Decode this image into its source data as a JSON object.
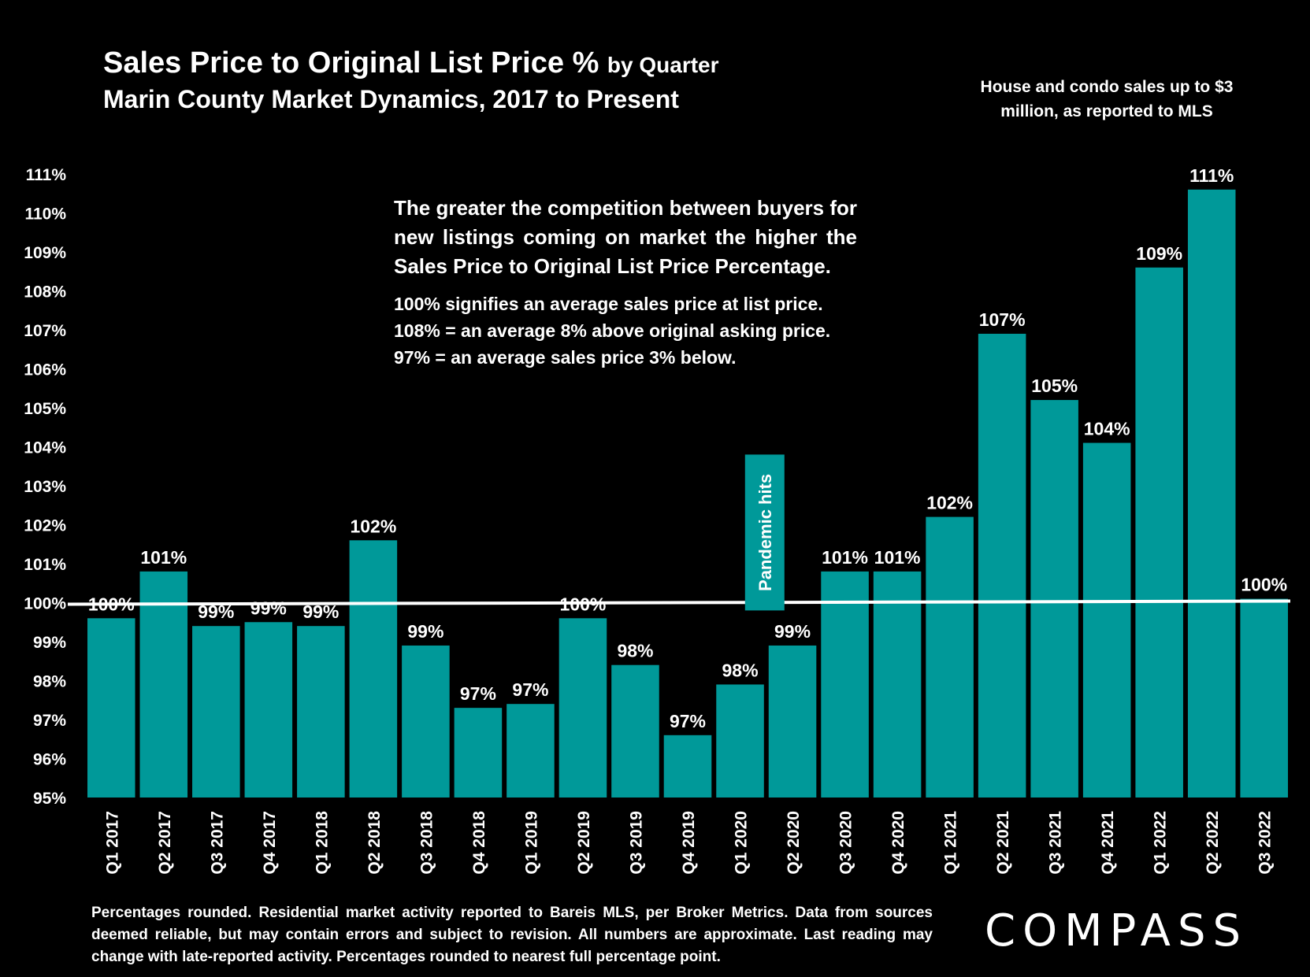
{
  "header": {
    "title": "Sales Price to Original List Price %",
    "title_suffix": "by Quarter",
    "subtitle": "Marin County Market Dynamics, 2017 to Present",
    "scope_note": "House and condo sales up to $3 million, as reported to MLS"
  },
  "annotation": {
    "paragraph": "The greater the competition between buyers for new listings coming on market the higher the Sales Price to Original List Price Percentage.",
    "line1": "100% signifies an average sales price at list price.",
    "line2": "108% = an average 8% above original asking price.",
    "line3": "97% = an average sales price 3% below."
  },
  "footnote": "Percentages rounded. Residential market activity reported to Bareis MLS, per Broker Metrics. Data from sources deemed reliable, but may contain errors and subject to revision. All numbers are approximate. Last reading may change with late-reported activity. Percentages rounded to nearest full percentage point.",
  "logo": "COMPASS",
  "colors": {
    "bar": "#009999",
    "background": "#000000",
    "text": "#ffffff",
    "reference_line": "#ffffff"
  },
  "chart_data": {
    "type": "bar",
    "categories": [
      "Q1 2017",
      "Q2 2017",
      "Q3 2017",
      "Q4 2017",
      "Q1 2018",
      "Q2 2018",
      "Q3 2018",
      "Q4 2018",
      "Q1 2019",
      "Q2 2019",
      "Q3 2019",
      "Q4 2019",
      "Q1 2020",
      "Q2 2020",
      "Q3 2020",
      "Q4 2020",
      "Q1 2021",
      "Q2 2021",
      "Q3 2021",
      "Q4 2021",
      "Q1 2022",
      "Q2 2022",
      "Q3 2022"
    ],
    "values": [
      99.6,
      100.8,
      99.4,
      99.5,
      99.4,
      101.6,
      98.9,
      97.3,
      97.4,
      99.6,
      98.4,
      96.6,
      97.9,
      98.9,
      100.8,
      100.8,
      102.2,
      106.9,
      105.2,
      104.1,
      108.6,
      110.6,
      100.1
    ],
    "data_labels": [
      "100%",
      "101%",
      "99%",
      "99%",
      "99%",
      "102%",
      "99%",
      "97%",
      "97%",
      "100%",
      "98%",
      "97%",
      "98%",
      "99%",
      "101%",
      "101%",
      "102%",
      "107%",
      "105%",
      "104%",
      "109%",
      "111%",
      "100%"
    ],
    "y_ticks": [
      "95%",
      "96%",
      "97%",
      "98%",
      "99%",
      "100%",
      "101%",
      "102%",
      "103%",
      "104%",
      "105%",
      "106%",
      "107%",
      "108%",
      "109%",
      "110%",
      "111%"
    ],
    "ylim": [
      95,
      111
    ],
    "reference_line": 100,
    "event_marker": {
      "category": "Q1 2020",
      "label": "Pandemic hits",
      "from": 99.8,
      "to": 103.8
    },
    "grid": false,
    "legend": "none"
  }
}
